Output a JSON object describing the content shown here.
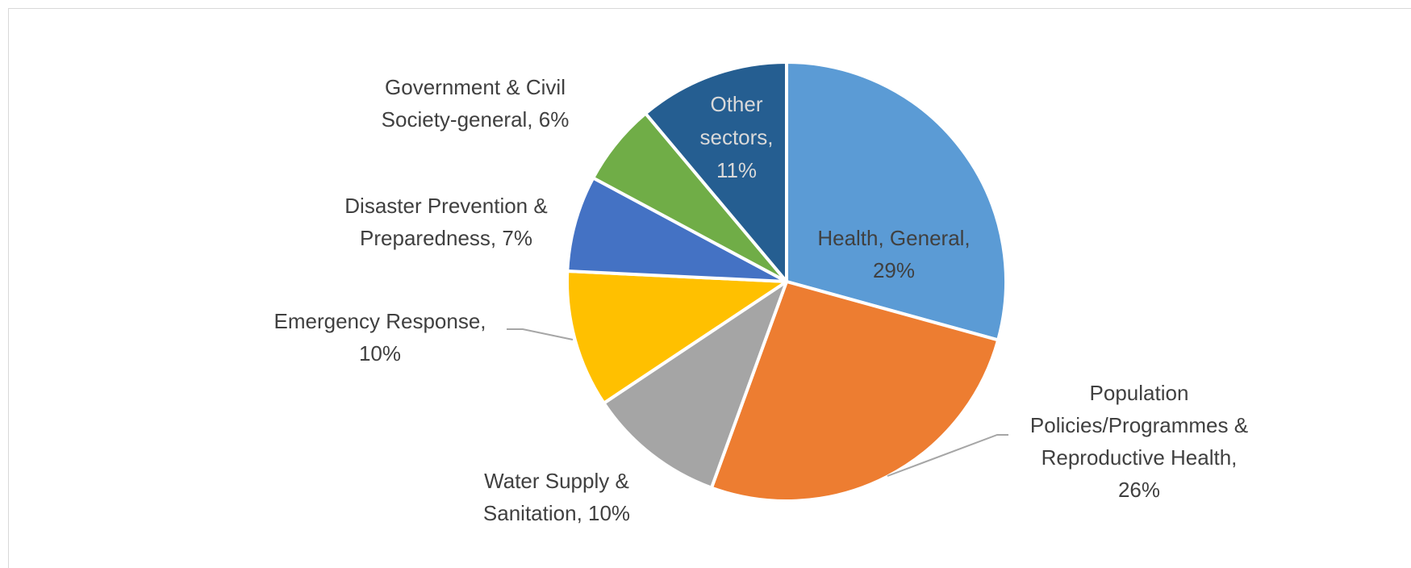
{
  "chart_data": {
    "type": "pie",
    "title": "",
    "slices": [
      {
        "label": "Health, General",
        "value": 29,
        "value_label": "29%",
        "color": "#5B9BD5"
      },
      {
        "label": "Population Policies/Programmes & Reproductive Health",
        "value": 26,
        "value_label": "26%",
        "color": "#ED7D31"
      },
      {
        "label": "Water Supply & Sanitation",
        "value": 10,
        "value_label": "10%",
        "color": "#A5A5A5"
      },
      {
        "label": "Emergency Response",
        "value": 10,
        "value_label": "10%",
        "color": "#FFC000"
      },
      {
        "label": "Disaster Prevention & Preparedness",
        "value": 7,
        "value_label": "7%",
        "color": "#4472C4"
      },
      {
        "label": "Government & Civil Society-general",
        "value": 6,
        "value_label": "6%",
        "color": "#70AD47"
      },
      {
        "label": "Other sectors",
        "value": 11,
        "value_label": "11%",
        "color": "#255E91"
      }
    ],
    "legend": "none",
    "data_labels": [
      [
        "Health, General,",
        "29%"
      ],
      [
        "Population",
        "Policies/Programmes &",
        "Reproductive Health,",
        "26%"
      ],
      [
        "Water Supply &",
        "Sanitation, 10%"
      ],
      [
        "Emergency Response,",
        "10%"
      ],
      [
        "Disaster Prevention &",
        "Preparedness, 7%"
      ],
      [
        "Government & Civil",
        "Society-general, 6%"
      ],
      [
        "Other",
        "sectors,",
        "11%"
      ]
    ]
  }
}
